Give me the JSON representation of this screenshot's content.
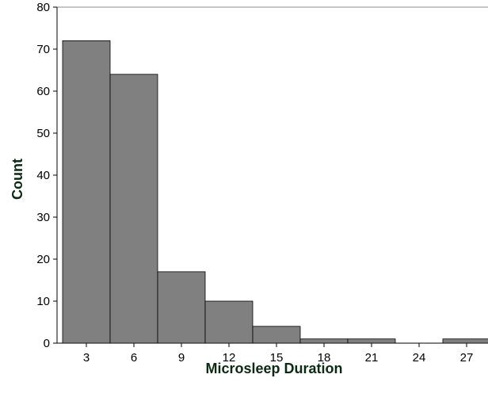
{
  "chart_data": {
    "type": "bar",
    "xlabel": "Microsleep Duration",
    "ylabel": "Count",
    "categories": [
      "3",
      "6",
      "9",
      "12",
      "15",
      "18",
      "21",
      "24",
      "27"
    ],
    "values": [
      72,
      64,
      17,
      10,
      4,
      1,
      1,
      0,
      1
    ],
    "y_ticks": [
      "0",
      "10",
      "20",
      "30",
      "40",
      "50",
      "60",
      "70",
      "80"
    ],
    "ylim": [
      0,
      80
    ],
    "grid": false,
    "bar_color": "#808080",
    "frame_color": "#8c8c8c",
    "title_color": "#0b2a12"
  }
}
